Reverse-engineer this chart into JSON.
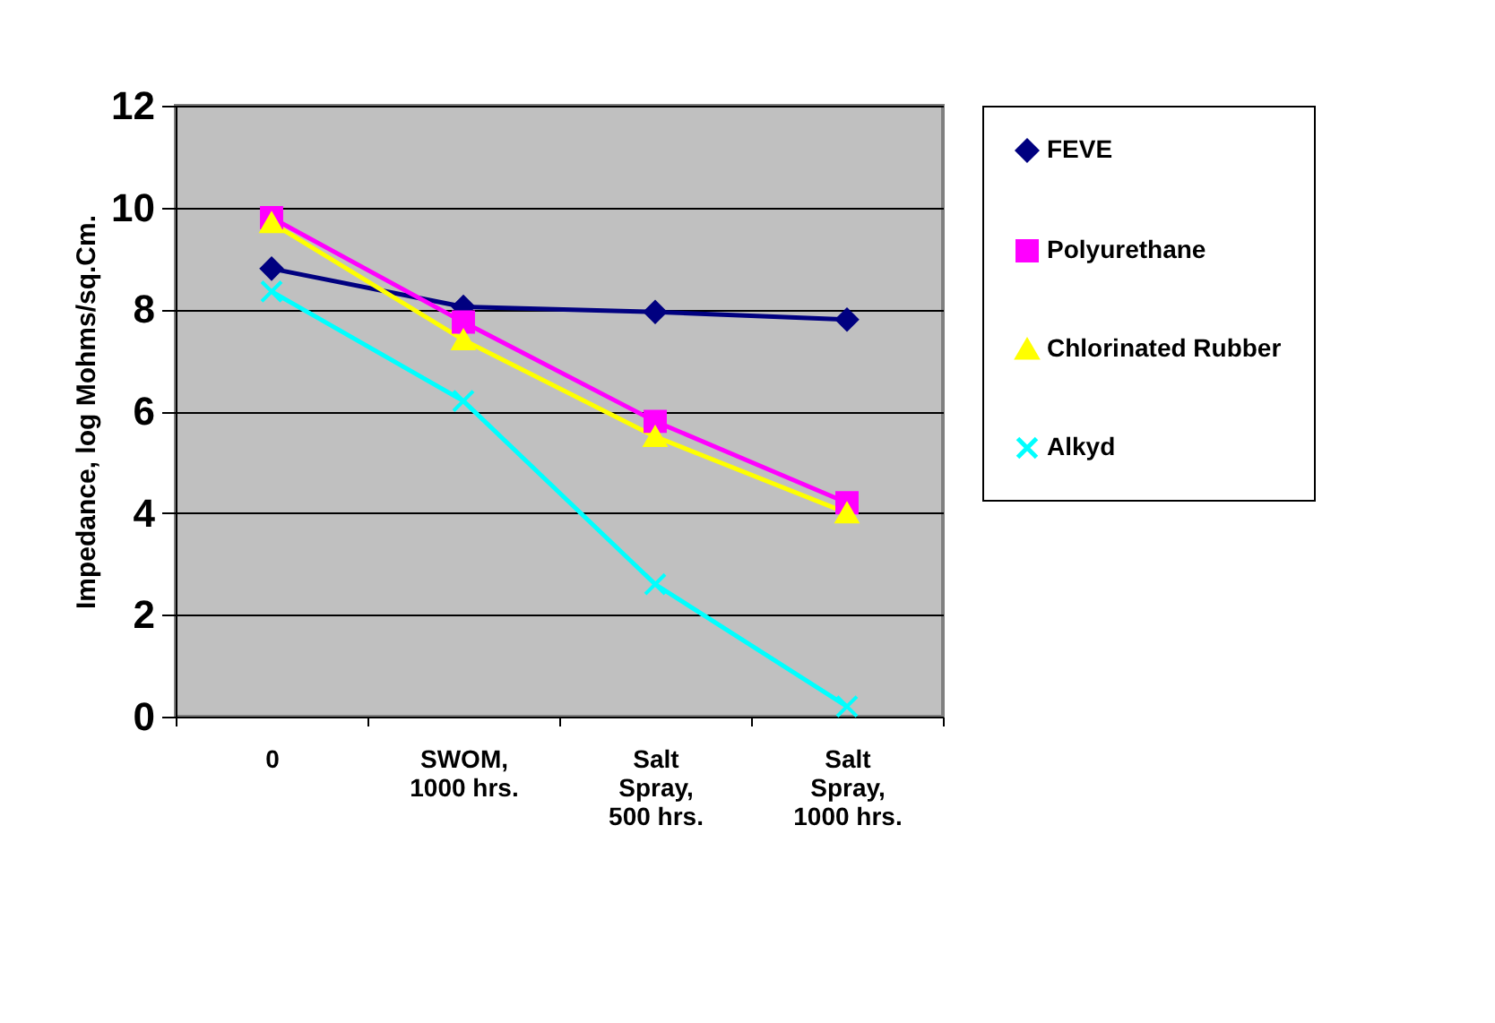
{
  "chart_data": {
    "type": "line",
    "ylabel": "Impedance, log Mohms/sq.Cm.",
    "categories": [
      "0",
      "SWOM, 1000 hrs.",
      "Salt Spray, 500 hrs.",
      "Salt Spray, 1000 hrs."
    ],
    "series": [
      {
        "name": "FEVE",
        "color": "#000080",
        "marker": "diamond",
        "values": [
          8.8,
          8.05,
          7.95,
          7.8
        ]
      },
      {
        "name": "Polyurethane",
        "color": "#ff00ff",
        "marker": "square",
        "values": [
          9.8,
          7.75,
          5.8,
          4.2
        ]
      },
      {
        "name": "Chlorinated Rubber",
        "color": "#ffff00",
        "marker": "triangle",
        "values": [
          9.7,
          7.4,
          5.5,
          4.0
        ]
      },
      {
        "name": "Alkyd",
        "color": "#00ffff",
        "marker": "cross",
        "values": [
          8.35,
          6.2,
          2.6,
          0.2
        ]
      }
    ],
    "ylim": [
      0,
      12
    ],
    "yticks": [
      0,
      2,
      4,
      6,
      8,
      10,
      12
    ],
    "grid": "y",
    "legend": "right"
  }
}
